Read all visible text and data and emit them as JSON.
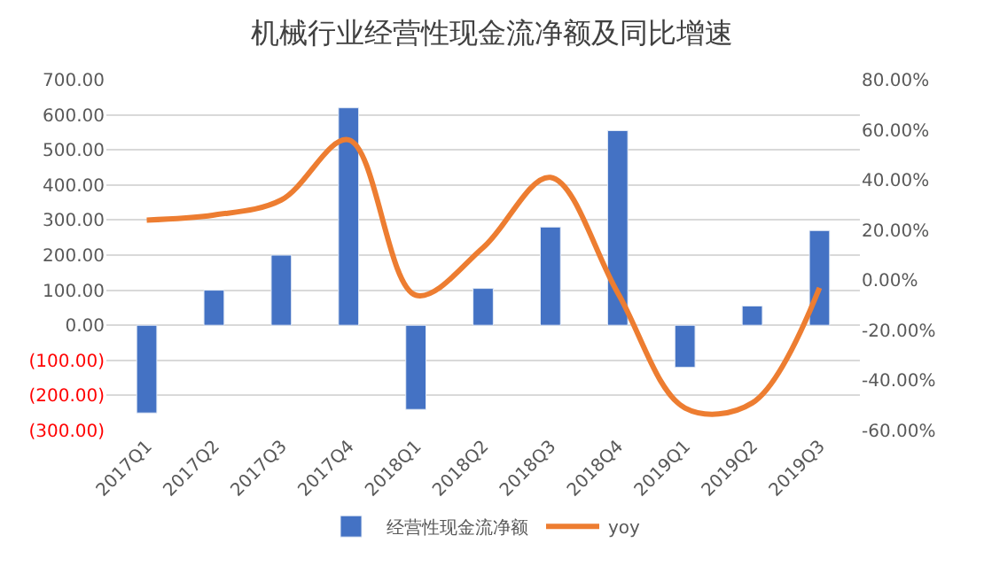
{
  "chart_data": {
    "type": "bar",
    "title": "机械行业经营性现金流净额及同比增速",
    "categories": [
      "2017Q1",
      "2017Q2",
      "2017Q3",
      "2017Q4",
      "2018Q1",
      "2018Q2",
      "2018Q3",
      "2018Q4",
      "2019Q1",
      "2019Q2",
      "2019Q3"
    ],
    "series": [
      {
        "name": "经营性现金流净额",
        "color": "#4472c4",
        "values": [
          -250,
          100,
          200,
          620,
          -240,
          105,
          280,
          555,
          -120,
          55,
          270
        ]
      },
      {
        "name": "yoy",
        "type": "line",
        "axis": "y2",
        "color": "#ed7d31",
        "values": [
          24,
          26,
          32,
          56,
          -6,
          13,
          41,
          -5,
          -51,
          -49,
          -3
        ]
      }
    ],
    "ylim": [
      -300,
      700
    ],
    "yticks": [
      {
        "value": -300,
        "label": "(300.00)"
      },
      {
        "value": -200,
        "label": "(200.00)"
      },
      {
        "value": -100,
        "label": "(100.00)"
      },
      {
        "value": 0,
        "label": "0.00"
      },
      {
        "value": 100,
        "label": "100.00"
      },
      {
        "value": 200,
        "label": "200.00"
      },
      {
        "value": 300,
        "label": "300.00"
      },
      {
        "value": 400,
        "label": "400.00"
      },
      {
        "value": 500,
        "label": "500.00"
      },
      {
        "value": 600,
        "label": "600.00"
      },
      {
        "value": 700,
        "label": "700.00"
      }
    ],
    "y2lim": [
      -60,
      80
    ],
    "y2ticks": [
      {
        "value": -60,
        "label": "-60.00%"
      },
      {
        "value": -40,
        "label": "-40.00%"
      },
      {
        "value": -20,
        "label": "-20.00%"
      },
      {
        "value": 0,
        "label": "0.00%"
      },
      {
        "value": 20,
        "label": "20.00%"
      },
      {
        "value": 40,
        "label": "40.00%"
      },
      {
        "value": 60,
        "label": "60.00%"
      },
      {
        "value": 80,
        "label": "80.00%"
      }
    ],
    "grid": "y",
    "legend": "bottom",
    "marker": "none",
    "line_style": "solid"
  }
}
